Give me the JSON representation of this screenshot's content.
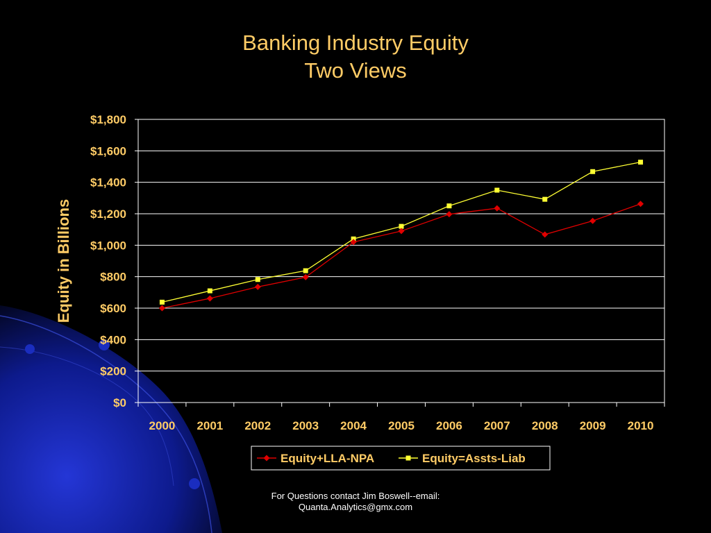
{
  "slide": {
    "title_line1": "Banking Industry Equity",
    "title_line2": "Two Views",
    "footer_line1": "For Questions contact Jim Boswell--email:",
    "footer_line2": "Quanta.Analytics@gmx.com"
  },
  "colors": {
    "background": "#000000",
    "title": "#ffcc66",
    "axis_text": "#ffcc66",
    "gridline": "#ffffff",
    "series_red": "#e00000",
    "series_yellow": "#ffff33",
    "decor_blue": "#1a2dbf"
  },
  "chart_data": {
    "type": "line",
    "title": "",
    "xlabel": "",
    "ylabel": "Equity in Billions",
    "categories": [
      "2000",
      "2001",
      "2002",
      "2003",
      "2004",
      "2005",
      "2006",
      "2007",
      "2008",
      "2009",
      "2010"
    ],
    "ylim": [
      0,
      1800
    ],
    "yticks": [
      0,
      200,
      400,
      600,
      800,
      1000,
      1200,
      1400,
      1600,
      1800
    ],
    "ytick_labels": [
      "$0",
      "$200",
      "$400",
      "$600",
      "$800",
      "$1,000",
      "$1,200",
      "$1,400",
      "$1,600",
      "$1,800"
    ],
    "grid": true,
    "legend_position": "bottom",
    "series": [
      {
        "name": "Equity+LLA-NPA",
        "color": "#e00000",
        "marker": "diamond",
        "values": [
          600,
          662,
          735,
          797,
          1020,
          1090,
          1197,
          1235,
          1068,
          1155,
          1263
        ]
      },
      {
        "name": "Equity=Assts-Liab",
        "color": "#ffff33",
        "marker": "square",
        "values": [
          638,
          710,
          782,
          838,
          1040,
          1120,
          1250,
          1350,
          1292,
          1468,
          1528
        ]
      }
    ]
  }
}
